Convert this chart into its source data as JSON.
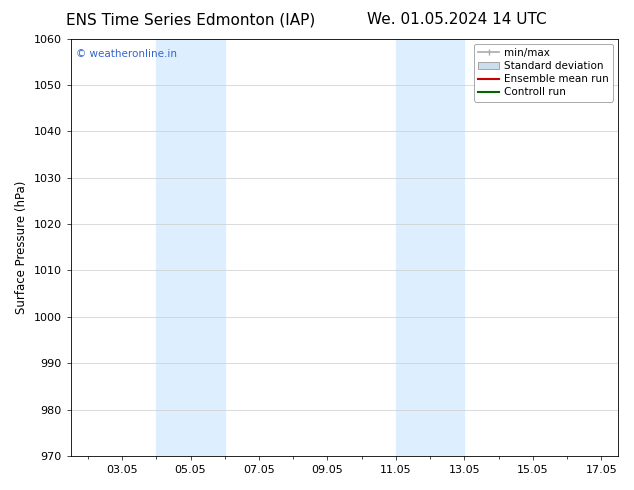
{
  "title_left": "ENS Time Series Edmonton (IAP)",
  "title_right": "We. 01.05.2024 14 UTC",
  "ylabel": "Surface Pressure (hPa)",
  "ylim": [
    970,
    1060
  ],
  "yticks": [
    970,
    980,
    990,
    1000,
    1010,
    1020,
    1030,
    1040,
    1050,
    1060
  ],
  "xlim": [
    1.5,
    17.5
  ],
  "xtick_labels": [
    "03.05",
    "05.05",
    "07.05",
    "09.05",
    "11.05",
    "13.05",
    "15.05",
    "17.05"
  ],
  "xtick_positions": [
    3,
    5,
    7,
    9,
    11,
    13,
    15,
    17
  ],
  "shaded_regions": [
    {
      "x_start": 4,
      "x_end": 6
    },
    {
      "x_start": 11,
      "x_end": 13
    }
  ],
  "shaded_color": "#ddeeff",
  "watermark_text": "© weatheronline.in",
  "watermark_color": "#3366cc",
  "legend_entries": [
    {
      "label": "min/max",
      "type": "minmax",
      "color": "#aaaaaa",
      "lw": 1.2
    },
    {
      "label": "Standard deviation",
      "type": "patch",
      "color": "#ccdded",
      "lw": 1.0
    },
    {
      "label": "Ensemble mean run",
      "type": "line",
      "color": "#cc0000",
      "lw": 1.5
    },
    {
      "label": "Controll run",
      "type": "line",
      "color": "#006600",
      "lw": 1.5
    }
  ],
  "bg_color": "#ffffff",
  "grid_color": "#cccccc",
  "title_fontsize": 11,
  "label_fontsize": 8.5,
  "tick_fontsize": 8,
  "legend_fontsize": 7.5
}
